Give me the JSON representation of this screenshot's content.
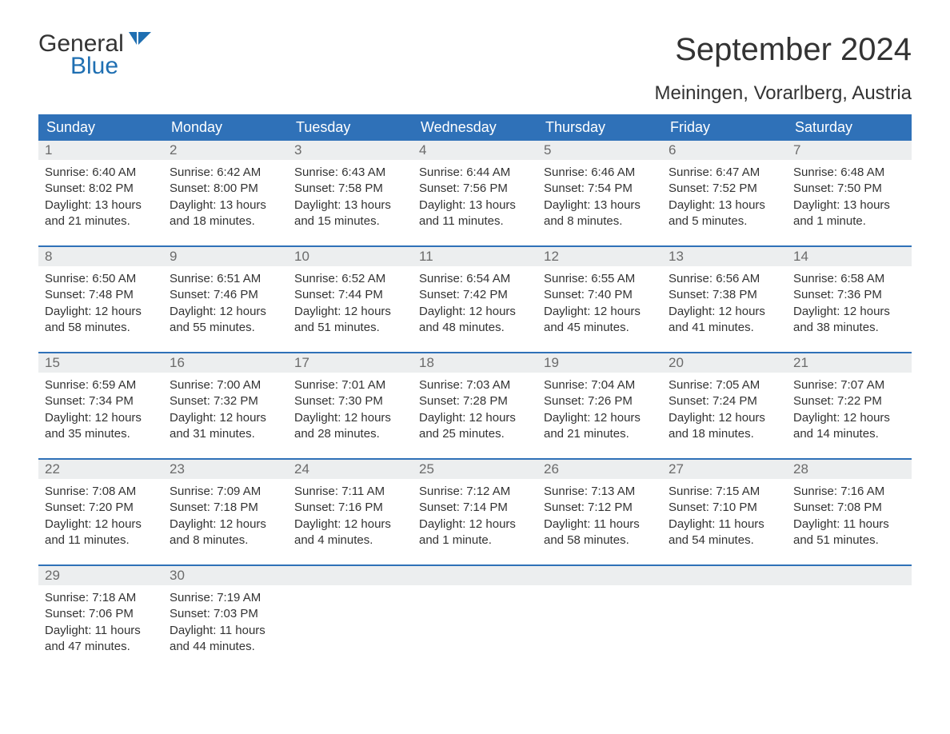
{
  "brand": {
    "general": "General",
    "blue": "Blue"
  },
  "title": "September 2024",
  "location": "Meiningen, Vorarlberg, Austria",
  "colors": {
    "header_bg": "#2f71b8",
    "header_text": "#ffffff",
    "daynum_bg": "#eceeef",
    "daynum_text": "#6b6b6b",
    "body_text": "#333333",
    "rule": "#2f71b8",
    "logo_blue": "#1f6fb2"
  },
  "days_of_week": [
    "Sunday",
    "Monday",
    "Tuesday",
    "Wednesday",
    "Thursday",
    "Friday",
    "Saturday"
  ],
  "days": [
    {
      "n": "1",
      "sunrise": "Sunrise: 6:40 AM",
      "sunset": "Sunset: 8:02 PM",
      "daylight": "Daylight: 13 hours and 21 minutes."
    },
    {
      "n": "2",
      "sunrise": "Sunrise: 6:42 AM",
      "sunset": "Sunset: 8:00 PM",
      "daylight": "Daylight: 13 hours and 18 minutes."
    },
    {
      "n": "3",
      "sunrise": "Sunrise: 6:43 AM",
      "sunset": "Sunset: 7:58 PM",
      "daylight": "Daylight: 13 hours and 15 minutes."
    },
    {
      "n": "4",
      "sunrise": "Sunrise: 6:44 AM",
      "sunset": "Sunset: 7:56 PM",
      "daylight": "Daylight: 13 hours and 11 minutes."
    },
    {
      "n": "5",
      "sunrise": "Sunrise: 6:46 AM",
      "sunset": "Sunset: 7:54 PM",
      "daylight": "Daylight: 13 hours and 8 minutes."
    },
    {
      "n": "6",
      "sunrise": "Sunrise: 6:47 AM",
      "sunset": "Sunset: 7:52 PM",
      "daylight": "Daylight: 13 hours and 5 minutes."
    },
    {
      "n": "7",
      "sunrise": "Sunrise: 6:48 AM",
      "sunset": "Sunset: 7:50 PM",
      "daylight": "Daylight: 13 hours and 1 minute."
    },
    {
      "n": "8",
      "sunrise": "Sunrise: 6:50 AM",
      "sunset": "Sunset: 7:48 PM",
      "daylight": "Daylight: 12 hours and 58 minutes."
    },
    {
      "n": "9",
      "sunrise": "Sunrise: 6:51 AM",
      "sunset": "Sunset: 7:46 PM",
      "daylight": "Daylight: 12 hours and 55 minutes."
    },
    {
      "n": "10",
      "sunrise": "Sunrise: 6:52 AM",
      "sunset": "Sunset: 7:44 PM",
      "daylight": "Daylight: 12 hours and 51 minutes."
    },
    {
      "n": "11",
      "sunrise": "Sunrise: 6:54 AM",
      "sunset": "Sunset: 7:42 PM",
      "daylight": "Daylight: 12 hours and 48 minutes."
    },
    {
      "n": "12",
      "sunrise": "Sunrise: 6:55 AM",
      "sunset": "Sunset: 7:40 PM",
      "daylight": "Daylight: 12 hours and 45 minutes."
    },
    {
      "n": "13",
      "sunrise": "Sunrise: 6:56 AM",
      "sunset": "Sunset: 7:38 PM",
      "daylight": "Daylight: 12 hours and 41 minutes."
    },
    {
      "n": "14",
      "sunrise": "Sunrise: 6:58 AM",
      "sunset": "Sunset: 7:36 PM",
      "daylight": "Daylight: 12 hours and 38 minutes."
    },
    {
      "n": "15",
      "sunrise": "Sunrise: 6:59 AM",
      "sunset": "Sunset: 7:34 PM",
      "daylight": "Daylight: 12 hours and 35 minutes."
    },
    {
      "n": "16",
      "sunrise": "Sunrise: 7:00 AM",
      "sunset": "Sunset: 7:32 PM",
      "daylight": "Daylight: 12 hours and 31 minutes."
    },
    {
      "n": "17",
      "sunrise": "Sunrise: 7:01 AM",
      "sunset": "Sunset: 7:30 PM",
      "daylight": "Daylight: 12 hours and 28 minutes."
    },
    {
      "n": "18",
      "sunrise": "Sunrise: 7:03 AM",
      "sunset": "Sunset: 7:28 PM",
      "daylight": "Daylight: 12 hours and 25 minutes."
    },
    {
      "n": "19",
      "sunrise": "Sunrise: 7:04 AM",
      "sunset": "Sunset: 7:26 PM",
      "daylight": "Daylight: 12 hours and 21 minutes."
    },
    {
      "n": "20",
      "sunrise": "Sunrise: 7:05 AM",
      "sunset": "Sunset: 7:24 PM",
      "daylight": "Daylight: 12 hours and 18 minutes."
    },
    {
      "n": "21",
      "sunrise": "Sunrise: 7:07 AM",
      "sunset": "Sunset: 7:22 PM",
      "daylight": "Daylight: 12 hours and 14 minutes."
    },
    {
      "n": "22",
      "sunrise": "Sunrise: 7:08 AM",
      "sunset": "Sunset: 7:20 PM",
      "daylight": "Daylight: 12 hours and 11 minutes."
    },
    {
      "n": "23",
      "sunrise": "Sunrise: 7:09 AM",
      "sunset": "Sunset: 7:18 PM",
      "daylight": "Daylight: 12 hours and 8 minutes."
    },
    {
      "n": "24",
      "sunrise": "Sunrise: 7:11 AM",
      "sunset": "Sunset: 7:16 PM",
      "daylight": "Daylight: 12 hours and 4 minutes."
    },
    {
      "n": "25",
      "sunrise": "Sunrise: 7:12 AM",
      "sunset": "Sunset: 7:14 PM",
      "daylight": "Daylight: 12 hours and 1 minute."
    },
    {
      "n": "26",
      "sunrise": "Sunrise: 7:13 AM",
      "sunset": "Sunset: 7:12 PM",
      "daylight": "Daylight: 11 hours and 58 minutes."
    },
    {
      "n": "27",
      "sunrise": "Sunrise: 7:15 AM",
      "sunset": "Sunset: 7:10 PM",
      "daylight": "Daylight: 11 hours and 54 minutes."
    },
    {
      "n": "28",
      "sunrise": "Sunrise: 7:16 AM",
      "sunset": "Sunset: 7:08 PM",
      "daylight": "Daylight: 11 hours and 51 minutes."
    },
    {
      "n": "29",
      "sunrise": "Sunrise: 7:18 AM",
      "sunset": "Sunset: 7:06 PM",
      "daylight": "Daylight: 11 hours and 47 minutes."
    },
    {
      "n": "30",
      "sunrise": "Sunrise: 7:19 AM",
      "sunset": "Sunset: 7:03 PM",
      "daylight": "Daylight: 11 hours and 44 minutes."
    }
  ],
  "layout": {
    "start_offset": 0,
    "trailing_blanks": 5
  }
}
